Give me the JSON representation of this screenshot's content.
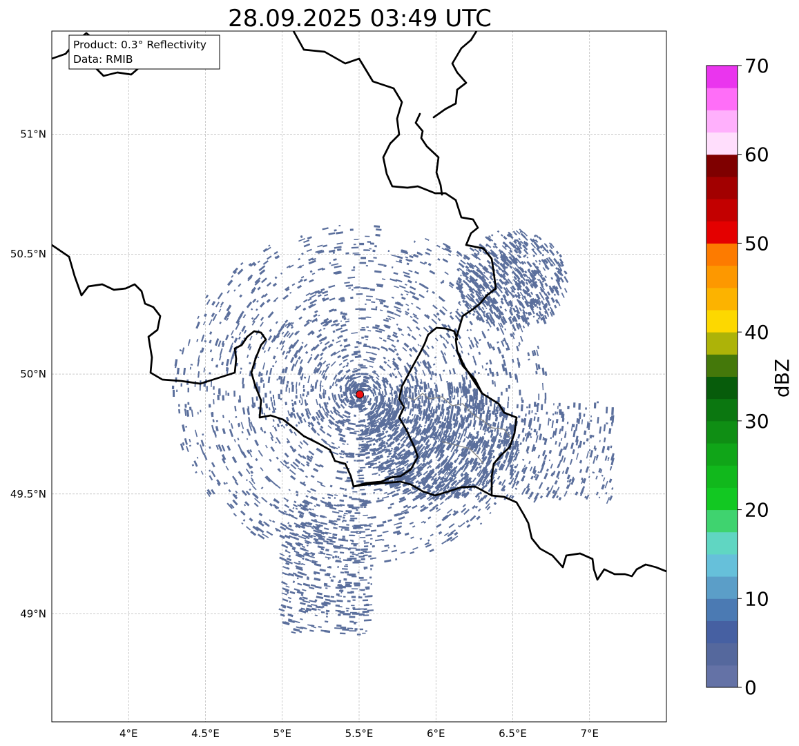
{
  "title": "28.09.2025 03:49 UTC",
  "info_box": {
    "line1": "Product: 0.3° Reflectivity",
    "line2": "Data: RMIB"
  },
  "map": {
    "lon_range": [
      3.5,
      7.5
    ],
    "lat_range": [
      48.55,
      51.43
    ],
    "lon_ticks": [
      4,
      4.5,
      5,
      5.5,
      6,
      6.5,
      7
    ],
    "lon_tick_labels": [
      "4°E",
      "4.5°E",
      "5°E",
      "5.5°E",
      "6°E",
      "6.5°E",
      "7°E"
    ],
    "lat_ticks": [
      49,
      49.5,
      50,
      50.5,
      51
    ],
    "lat_tick_labels": [
      "49°N",
      "49.5°N",
      "50°N",
      "50.5°N",
      "51°N"
    ],
    "radar_site": {
      "lon": 5.505,
      "lat": 49.915
    },
    "radar_marker_color": "#ee1111",
    "echo_color": "#5b6f9c",
    "grid": true
  },
  "colorbar": {
    "label": "dBZ",
    "range": [
      0,
      70
    ],
    "step": 2.5,
    "tick_values": [
      0,
      10,
      20,
      30,
      40,
      50,
      60,
      70
    ],
    "tick_labels": [
      "0",
      "10",
      "20",
      "30",
      "40",
      "50",
      "60",
      "70"
    ],
    "colors": [
      "#6472a6",
      "#55689d",
      "#4660a2",
      "#4b7ab3",
      "#5b9ec8",
      "#66c0da",
      "#60d6c2",
      "#3fd36f",
      "#12c822",
      "#11b81c",
      "#10a518",
      "#0f8e14",
      "#0b7710",
      "#075c0b",
      "#44780a",
      "#adb308",
      "#fdd800",
      "#fcb300",
      "#fd9800",
      "#fd7b00",
      "#e40000",
      "#c30000",
      "#a20000",
      "#7f0000",
      "#ffdefc",
      "#ffb0fc",
      "#ff6ef8",
      "#ea35ee"
    ]
  }
}
